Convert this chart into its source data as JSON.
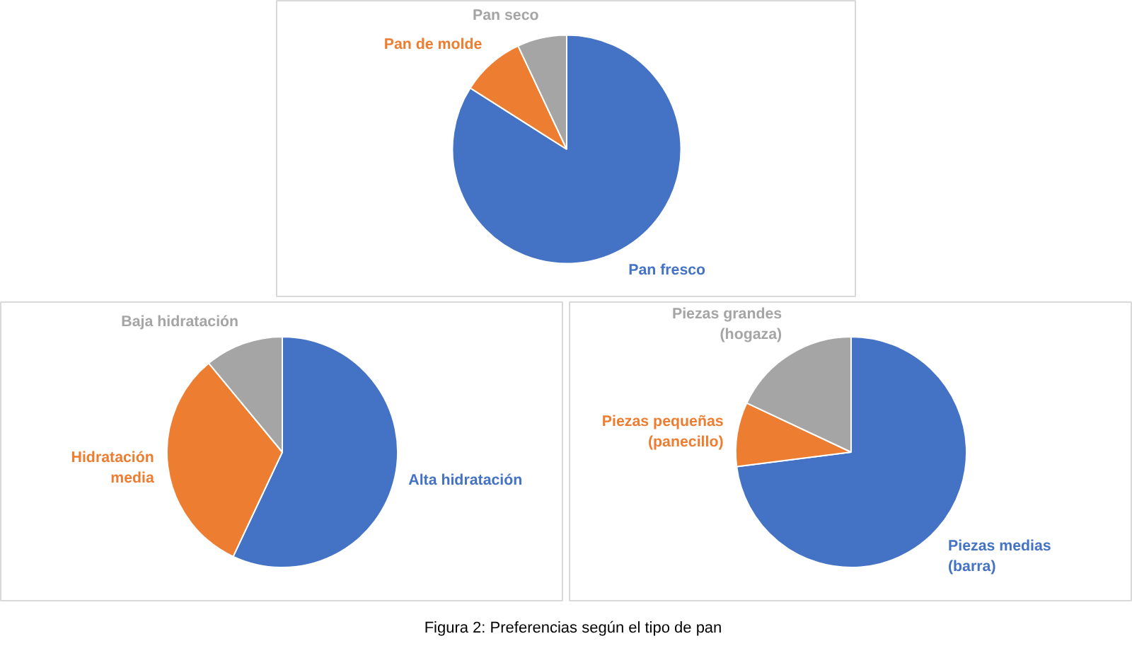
{
  "chart_data": [
    {
      "type": "pie",
      "categories": [
        "Pan fresco",
        "Pan de molde",
        "Pan seco"
      ],
      "values": [
        84,
        9,
        7
      ],
      "colors": [
        "#4472c4",
        "#ed7d31",
        "#a5a5a5"
      ]
    },
    {
      "type": "pie",
      "categories": [
        "Alta hidratación",
        "Hidratación media",
        "Baja hidratación"
      ],
      "values": [
        57,
        32,
        11
      ],
      "colors": [
        "#4472c4",
        "#ed7d31",
        "#a5a5a5"
      ]
    },
    {
      "type": "pie",
      "categories": [
        "Piezas medias (barra)",
        "Piezas pequeñas (panecillo)",
        "Piezas grandes (hogaza)"
      ],
      "values": [
        73,
        9,
        18
      ],
      "colors": [
        "#4472c4",
        "#ed7d31",
        "#a5a5a5"
      ],
      "annotations": [
        "Figura 2: Preferencias según el tipo de pan"
      ]
    }
  ]
}
